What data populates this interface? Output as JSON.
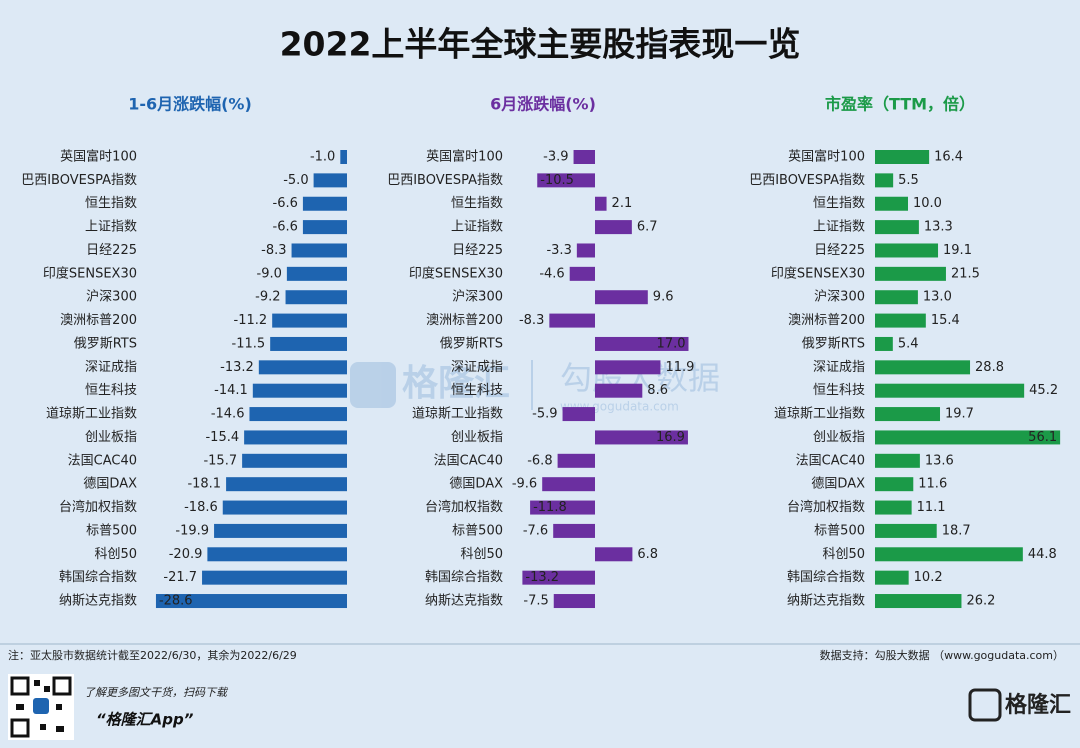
{
  "title": "2022上半年全球主要股指表现一览",
  "chart_data": [
    {
      "type": "bar",
      "title": "1-6月涨跌幅(%)",
      "color": "#1e64b0",
      "categories": [
        "英国富时100",
        "巴西IBOVESPA指数",
        "恒生指数",
        "上证指数",
        "日经225",
        "印度SENSEX30",
        "沪深300",
        "澳洲标普200",
        "俄罗斯RTS",
        "深证成指",
        "恒生科技",
        "道琼斯工业指数",
        "创业板指",
        "法国CAC40",
        "德国DAX",
        "台湾加权指数",
        "标普500",
        "科创50",
        "韩国综合指数",
        "纳斯达克指数"
      ],
      "values": [
        -1.0,
        -5.0,
        -6.6,
        -6.6,
        -8.3,
        -9.0,
        -9.2,
        -11.2,
        -11.5,
        -13.2,
        -14.1,
        -14.6,
        -15.4,
        -15.7,
        -18.1,
        -18.6,
        -19.9,
        -20.9,
        -21.7,
        -28.6
      ],
      "value_labels": [
        "-1.0",
        "-5.0",
        "-6.6",
        "-6.6",
        "-8.3",
        "-9.0",
        "-9.2",
        "-11.2",
        "-11.5",
        "-13.2",
        "-14.1",
        "-14.6",
        "-15.4",
        "-15.7",
        "-18.1",
        "-18.6",
        "-19.9",
        "-20.9",
        "-21.7",
        "-28.6"
      ]
    },
    {
      "type": "bar",
      "title": "6月涨跌幅(%)",
      "color": "#6b2fa0",
      "categories": [
        "英国富时100",
        "巴西IBOVESPA指数",
        "恒生指数",
        "上证指数",
        "日经225",
        "印度SENSEX30",
        "沪深300",
        "澳洲标普200",
        "俄罗斯RTS",
        "深证成指",
        "恒生科技",
        "道琼斯工业指数",
        "创业板指",
        "法国CAC40",
        "德国DAX",
        "台湾加权指数",
        "标普500",
        "科创50",
        "韩国综合指数",
        "纳斯达克指数"
      ],
      "values": [
        -3.9,
        -10.5,
        2.1,
        6.7,
        -3.3,
        -4.6,
        9.6,
        -8.3,
        17.0,
        11.9,
        8.6,
        -5.9,
        16.9,
        -6.8,
        -9.6,
        -11.8,
        -7.6,
        6.8,
        -13.2,
        -7.5
      ],
      "value_labels": [
        "-3.9",
        "-10.5",
        "2.1",
        "6.7",
        "-3.3",
        "-4.6",
        "9.6",
        "-8.3",
        "17.0",
        "11.9",
        "8.6",
        "-5.9",
        "16.9",
        "-6.8",
        "-9.6",
        "-11.8",
        "-7.6",
        "6.8",
        "-13.2",
        "-7.5"
      ]
    },
    {
      "type": "bar",
      "title": "市盈率（TTM，倍）",
      "color": "#1b9a48",
      "categories": [
        "英国富时100",
        "巴西IBOVESPA指数",
        "恒生指数",
        "上证指数",
        "日经225",
        "印度SENSEX30",
        "沪深300",
        "澳洲标普200",
        "俄罗斯RTS",
        "深证成指",
        "恒生科技",
        "道琼斯工业指数",
        "创业板指",
        "法国CAC40",
        "德国DAX",
        "台湾加权指数",
        "标普500",
        "科创50",
        "韩国综合指数",
        "纳斯达克指数"
      ],
      "values": [
        16.4,
        5.5,
        10.0,
        13.3,
        19.1,
        21.5,
        13.0,
        15.4,
        5.4,
        28.8,
        45.2,
        19.7,
        56.1,
        13.6,
        11.6,
        11.1,
        18.7,
        44.8,
        10.2,
        26.2
      ],
      "value_labels": [
        "16.4",
        "5.5",
        "10.0",
        "13.3",
        "19.1",
        "21.5",
        "13.0",
        "15.4",
        "5.4",
        "28.8",
        "45.2",
        "19.7",
        "56.1",
        "13.6",
        "11.6",
        "11.1",
        "18.7",
        "44.8",
        "10.2",
        "26.2"
      ]
    }
  ],
  "watermark": {
    "brand": "格隆汇",
    "partner": "勾股大数据",
    "url": "www.gogudata.com"
  },
  "note": "注：亚太股市数据统计截至2022/6/30，其余为2022/6/29",
  "source": "数据支持：勾股大数据 （www.gogudata.com）",
  "promo": "了解更多图文干货，扫码下载",
  "app": "“格隆汇App”",
  "logo": "格隆汇"
}
